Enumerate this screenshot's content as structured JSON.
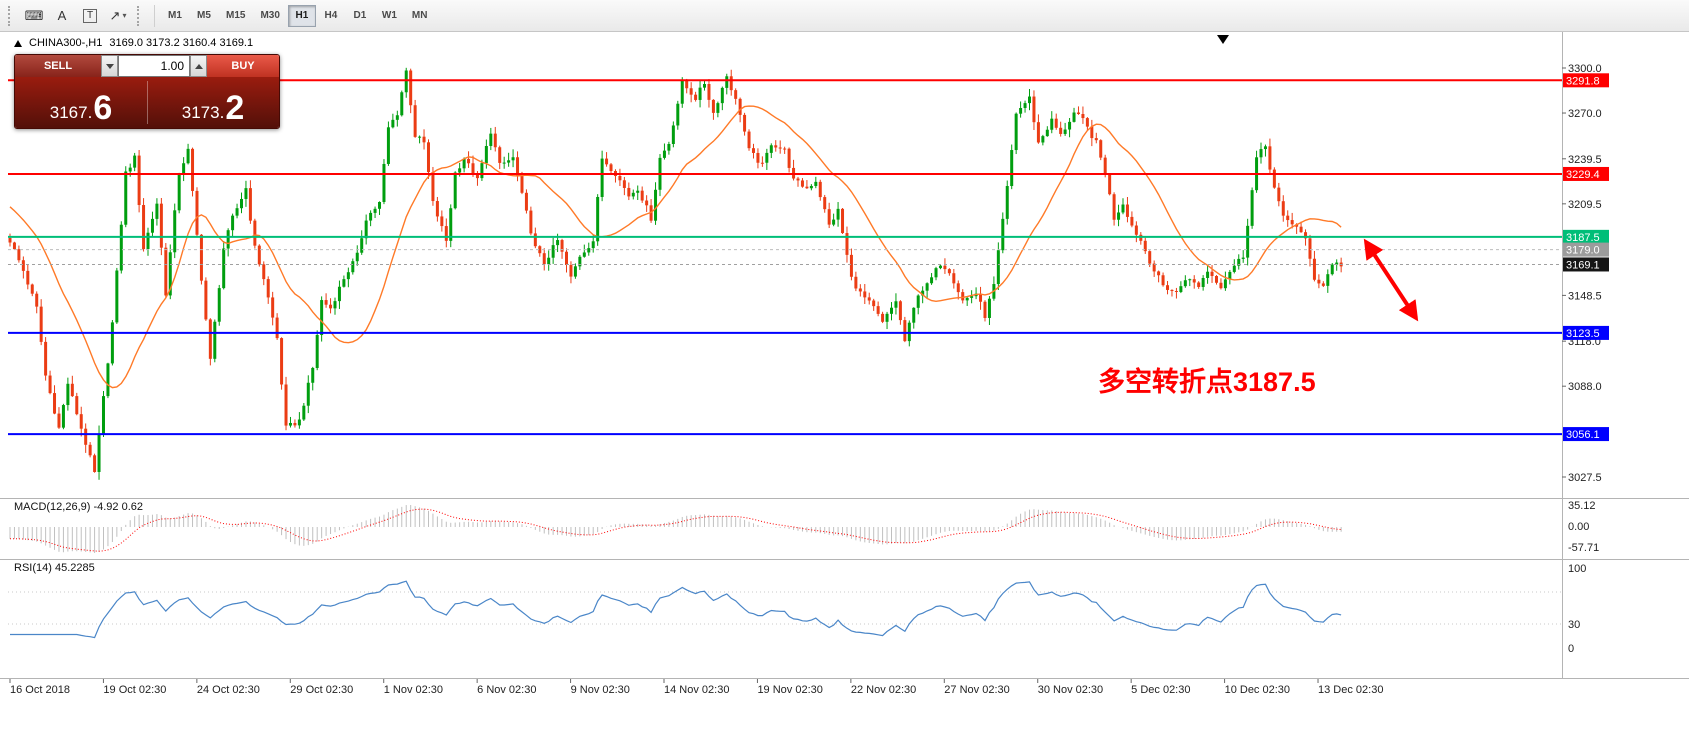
{
  "toolbar": {
    "icon_glyphs": {
      "keyboard": "⌨",
      "text": "A",
      "label": "T",
      "arrow": "↗",
      "caret": "▾"
    },
    "timeframes": [
      "M1",
      "M5",
      "M15",
      "M30",
      "H1",
      "H4",
      "D1",
      "W1",
      "MN"
    ],
    "active_timeframe": "H1"
  },
  "header": {
    "symbol": "CHINA300-,H1",
    "ohlc": "3169.0 3173.2 3160.4 3169.1"
  },
  "trade_panel": {
    "sell_label": "SELL",
    "buy_label": "BUY",
    "volume": "1.00",
    "bid_main": "3167.",
    "bid_big": "6",
    "ask_main": "3173.",
    "ask_big": "2"
  },
  "indicators": {
    "macd": {
      "label": "MACD(12,26,9) -4.92 0.62",
      "ticks": [
        "35.12",
        "0.00",
        "-57.71"
      ]
    },
    "rsi": {
      "label": "RSI(14) 45.2285",
      "ticks": [
        100,
        30,
        0
      ],
      "levels": [
        70,
        30
      ]
    }
  },
  "annotation": {
    "text": "多空转折点3187.5",
    "color": "#FF0000",
    "arrow": {
      "from": [
        1366,
        242
      ],
      "to": [
        1416,
        318
      ]
    }
  },
  "chart_data": {
    "type": "candlestick",
    "symbol": "CHINA300-",
    "timeframe": "H1",
    "current": {
      "open": 3169.0,
      "high": 3173.2,
      "low": 3160.4,
      "close": 3169.1
    },
    "price_axis": {
      "min": 3027.5,
      "max": 3300.0,
      "ticks": [
        3300.0,
        3270.0,
        3239.5,
        3209.5,
        3148.5,
        3118.0,
        3088.0,
        3027.5
      ]
    },
    "levels": [
      {
        "price": 3291.8,
        "color": "#FF0000",
        "style": "solid",
        "width": 2
      },
      {
        "price": 3229.4,
        "color": "#FF0000",
        "style": "solid",
        "width": 2
      },
      {
        "price": 3187.5,
        "color": "#00BE78",
        "style": "solid",
        "width": 2
      },
      {
        "price": 3179.0,
        "color": "#9C9C9C",
        "style": "dashed",
        "line_color": "#bdbdbd"
      },
      {
        "price": 3169.1,
        "color": "#151515",
        "style": "dashed",
        "line_color": "#a0a0a0"
      },
      {
        "price": 3123.5,
        "color": "#0000FF",
        "style": "solid",
        "width": 2
      },
      {
        "price": 3056.1,
        "color": "#0000FF",
        "style": "solid",
        "width": 2
      }
    ],
    "time_axis": [
      "16 Oct 2018",
      "19 Oct 02:30",
      "24 Oct 02:30",
      "29 Oct 02:30",
      "1 Nov 02:30",
      "6 Nov 02:30",
      "9 Nov 02:30",
      "14 Nov 02:30",
      "19 Nov 02:30",
      "22 Nov 02:30",
      "27 Nov 02:30",
      "30 Nov 02:30",
      "5 Dec 02:30",
      "10 Dec 02:30",
      "13 Dec 02:30"
    ],
    "candles": {
      "count": 300,
      "up_color": "#009E0F",
      "down_color": "#EB3C14",
      "wick": 5,
      "anchors": [
        [
          0,
          3185
        ],
        [
          3,
          3165
        ],
        [
          6,
          3140
        ],
        [
          8,
          3095
        ],
        [
          11,
          3060
        ],
        [
          13,
          3090
        ],
        [
          16,
          3060
        ],
        [
          19,
          3030
        ],
        [
          21,
          3080
        ],
        [
          23,
          3130
        ],
        [
          26,
          3230
        ],
        [
          28,
          3240
        ],
        [
          30,
          3180
        ],
        [
          33,
          3210
        ],
        [
          35,
          3150
        ],
        [
          38,
          3230
        ],
        [
          40,
          3245
        ],
        [
          43,
          3160
        ],
        [
          45,
          3105
        ],
        [
          48,
          3180
        ],
        [
          50,
          3200
        ],
        [
          53,
          3220
        ],
        [
          55,
          3180
        ],
        [
          57,
          3160
        ],
        [
          60,
          3120
        ],
        [
          62,
          3060
        ],
        [
          65,
          3065
        ],
        [
          68,
          3100
        ],
        [
          70,
          3145
        ],
        [
          72,
          3140
        ],
        [
          75,
          3160
        ],
        [
          78,
          3175
        ],
        [
          80,
          3200
        ],
        [
          83,
          3210
        ],
        [
          85,
          3260
        ],
        [
          87,
          3270
        ],
        [
          89,
          3298
        ],
        [
          91,
          3255
        ],
        [
          93,
          3250
        ],
        [
          95,
          3210
        ],
        [
          98,
          3185
        ],
        [
          100,
          3230
        ],
        [
          102,
          3240
        ],
        [
          105,
          3225
        ],
        [
          108,
          3258
        ],
        [
          110,
          3235
        ],
        [
          113,
          3240
        ],
        [
          115,
          3215
        ],
        [
          118,
          3180
        ],
        [
          120,
          3170
        ],
        [
          123,
          3185
        ],
        [
          126,
          3160
        ],
        [
          128,
          3175
        ],
        [
          131,
          3185
        ],
        [
          133,
          3240
        ],
        [
          136,
          3230
        ],
        [
          139,
          3215
        ],
        [
          141,
          3220
        ],
        [
          144,
          3200
        ],
        [
          146,
          3240
        ],
        [
          148,
          3250
        ],
        [
          151,
          3290
        ],
        [
          154,
          3280
        ],
        [
          156,
          3290
        ],
        [
          158,
          3270
        ],
        [
          161,
          3295
        ],
        [
          164,
          3270
        ],
        [
          166,
          3245
        ],
        [
          169,
          3235
        ],
        [
          171,
          3250
        ],
        [
          174,
          3245
        ],
        [
          176,
          3225
        ],
        [
          179,
          3220
        ],
        [
          181,
          3225
        ],
        [
          184,
          3195
        ],
        [
          186,
          3205
        ],
        [
          189,
          3160
        ],
        [
          191,
          3150
        ],
        [
          194,
          3140
        ],
        [
          196,
          3130
        ],
        [
          199,
          3145
        ],
        [
          201,
          3118
        ],
        [
          204,
          3150
        ],
        [
          206,
          3155
        ],
        [
          209,
          3170
        ],
        [
          211,
          3165
        ],
        [
          214,
          3145
        ],
        [
          217,
          3150
        ],
        [
          219,
          3135
        ],
        [
          221,
          3155
        ],
        [
          224,
          3220
        ],
        [
          226,
          3270
        ],
        [
          229,
          3280
        ],
        [
          231,
          3250
        ],
        [
          234,
          3265
        ],
        [
          236,
          3255
        ],
        [
          239,
          3270
        ],
        [
          241,
          3265
        ],
        [
          244,
          3250
        ],
        [
          246,
          3230
        ],
        [
          248,
          3200
        ],
        [
          250,
          3210
        ],
        [
          252,
          3195
        ],
        [
          254,
          3185
        ],
        [
          257,
          3165
        ],
        [
          259,
          3155
        ],
        [
          262,
          3150
        ],
        [
          264,
          3160
        ],
        [
          267,
          3155
        ],
        [
          269,
          3165
        ],
        [
          272,
          3155
        ],
        [
          274,
          3165
        ],
        [
          277,
          3175
        ],
        [
          280,
          3240
        ],
        [
          282,
          3248
        ],
        [
          284,
          3220
        ],
        [
          286,
          3200
        ],
        [
          289,
          3195
        ],
        [
          291,
          3185
        ],
        [
          293,
          3160
        ],
        [
          295,
          3155
        ],
        [
          297,
          3170
        ],
        [
          299,
          3169
        ]
      ]
    },
    "ma_seed": 3320,
    "moving_averages": [
      {
        "period": 120,
        "color": "#C93A3A"
      },
      {
        "period": 55,
        "color": "#FF00FF"
      },
      {
        "period": 20,
        "color": "#FF7A28"
      }
    ]
  }
}
